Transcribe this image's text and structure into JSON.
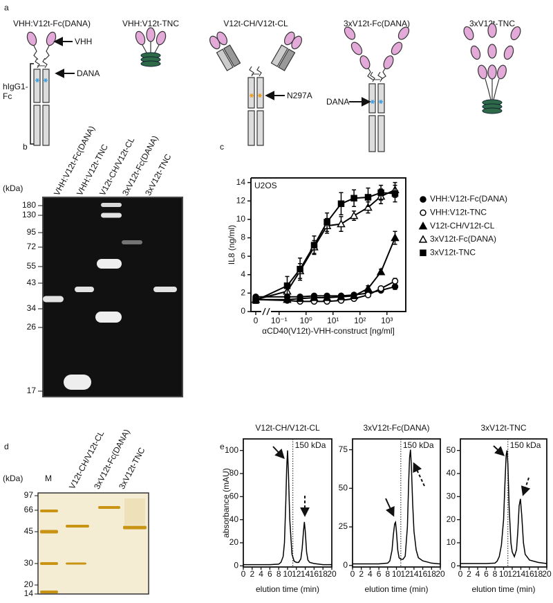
{
  "panels": {
    "a": {
      "label": "a",
      "constructs": [
        "VHH:V12t-Fc(DANA)",
        "VHH:V12t-TNC",
        "V12t-CH/V12t-CL",
        "3xV12t-Fc(DANA)",
        "3xV12t-TNC"
      ],
      "annotations": {
        "vhh": "VHH",
        "dana": "DANA",
        "fc_region": [
          "hIgG1-",
          "Fc"
        ],
        "n297a": "N297A",
        "dana_2": "DANA"
      }
    },
    "b": {
      "label": "b",
      "lanes": [
        "VHH:V12t-Fc(DANA)",
        "VHH:V12t-TNC",
        "V12t-CH/V12t-CL",
        "3xV12t-Fc(DANA)",
        "3xV12t-TNC"
      ],
      "unit": "(kDa)",
      "markers": [
        180,
        130,
        95,
        72,
        55,
        43,
        34,
        26,
        17
      ],
      "asterisks": [
        "*",
        "*",
        "*"
      ]
    },
    "c": {
      "label": "c"
    },
    "d": {
      "label": "d",
      "unit": "(kDa)",
      "marker_lane": "M",
      "lanes": [
        "V12t-CH/V12t-CL",
        "3xV12t-Fc(DANA)",
        "3xV12t-TNC"
      ],
      "markers": [
        97,
        66,
        45,
        30,
        20,
        14
      ]
    },
    "e": {
      "label": "e"
    }
  },
  "chart_data": [
    {
      "type": "line",
      "x_scale": "log",
      "annotation": "U2OS",
      "x_label": "αCD40(V12t)-VHH-construct [ng/ml]",
      "y_label": "IL8 (ng/ml)",
      "x": [
        0,
        0.2,
        0.6,
        2,
        6,
        20,
        60,
        200,
        600,
        2000
      ],
      "xlim": [
        0.05,
        5000
      ],
      "xticks": [
        0,
        {
          "value": 0.1,
          "label": "10⁻¹"
        },
        {
          "value": 1,
          "label": "10⁰"
        },
        {
          "value": 10,
          "label": "10¹"
        },
        {
          "value": 100,
          "label": "10²"
        },
        {
          "value": 1000,
          "label": "10³"
        }
      ],
      "ylim": [
        0,
        14.5
      ],
      "yticks": [
        0,
        2,
        4,
        6,
        8,
        10,
        12,
        14
      ],
      "legend": "right",
      "series": [
        {
          "name": "VHH:V12t-Fc(DANA)",
          "color": "#000000",
          "marker": "circle",
          "filled": true,
          "values": [
            1.6,
            1.6,
            1.6,
            1.7,
            1.7,
            1.7,
            1.8,
            2.0,
            2.3,
            2.7
          ],
          "errors": [
            0.2,
            0.2,
            0.2,
            0.2,
            0.2,
            0.2,
            0.2,
            0.2,
            0.2,
            0.3
          ]
        },
        {
          "name": "VHH:V12t-TNC",
          "color": "#000000",
          "marker": "circle",
          "filled": false,
          "values": [
            1.3,
            1.2,
            1.1,
            1.1,
            1.1,
            1.2,
            1.4,
            1.8,
            2.5,
            3.3
          ],
          "errors": [
            0.2,
            0.2,
            0.2,
            0.2,
            0.2,
            0.2,
            0.2,
            0.2,
            0.2,
            0.3
          ]
        },
        {
          "name": "V12t-CH/V12t-CL",
          "color": "#000000",
          "marker": "triangle",
          "filled": true,
          "values": [
            1.3,
            1.3,
            1.4,
            1.5,
            1.5,
            1.6,
            1.7,
            2.5,
            4.3,
            8.0
          ],
          "errors": [
            0.2,
            0.2,
            0.2,
            0.2,
            0.2,
            0.2,
            0.2,
            0.3,
            0.3,
            0.7
          ]
        },
        {
          "name": "3xV12t-Fc(DANA)",
          "color": "#000000",
          "marker": "triangle",
          "filled": false,
          "values": [
            1.3,
            2.2,
            4.4,
            7.0,
            9.3,
            9.5,
            10.4,
            11.3,
            12.5,
            13.2
          ],
          "errors": [
            0.3,
            0.5,
            0.8,
            0.7,
            0.8,
            0.8,
            0.5,
            0.6,
            0.8,
            0.8
          ]
        },
        {
          "name": "3xV12t-TNC",
          "color": "#000000",
          "marker": "square",
          "filled": true,
          "values": [
            1.2,
            2.8,
            4.6,
            7.2,
            9.7,
            11.7,
            12.3,
            12.4,
            12.9,
            12.8
          ],
          "errors": [
            0.3,
            1.0,
            1.2,
            1.0,
            1.0,
            1.2,
            0.9,
            1.0,
            0.8,
            0.9
          ]
        }
      ]
    },
    {
      "type": "line",
      "title": "V12t-CH/V12t-CL",
      "y_label": "absorbance (mAU)",
      "x_label": "elution time (min)",
      "x": [
        0,
        2,
        4,
        6,
        8,
        8.5,
        9,
        9.3,
        9.6,
        9.8,
        10,
        10.2,
        10.5,
        11,
        11.5,
        12,
        12.5,
        13,
        13.3,
        13.6,
        13.8,
        14,
        14.3,
        14.6,
        15,
        16,
        18,
        20
      ],
      "series": [
        {
          "color": "#000000",
          "values": [
            1,
            1,
            1,
            1,
            1.5,
            3,
            8,
            20,
            55,
            85,
            100,
            80,
            40,
            10,
            4,
            3,
            3,
            6,
            15,
            30,
            38,
            30,
            12,
            5,
            3,
            2,
            1,
            1
          ]
        }
      ],
      "xlim": [
        0,
        20
      ],
      "xticks": [
        0,
        2,
        4,
        6,
        8,
        10,
        12,
        14,
        16,
        18,
        20
      ],
      "ylim": [
        -1,
        110
      ],
      "yticks": [
        0,
        20,
        40,
        60,
        80,
        100
      ],
      "reference": {
        "x": 11.2,
        "label": "150 kDa"
      }
    },
    {
      "type": "line",
      "title": "3xV12t-Fc(DANA)",
      "x_label": "elution time (min)",
      "x": [
        0,
        2,
        4,
        6,
        8,
        8.5,
        9,
        9.3,
        9.6,
        9.8,
        10,
        10.3,
        10.6,
        11,
        11.5,
        12,
        12.5,
        12.8,
        13,
        13.2,
        13.4,
        13.7,
        14,
        14.5,
        15,
        16,
        18,
        20
      ],
      "series": [
        {
          "color": "#000000",
          "values": [
            1,
            1,
            1,
            1,
            1.5,
            3,
            10,
            20,
            27,
            28,
            22,
            10,
            5,
            4,
            4,
            6,
            25,
            55,
            70,
            75,
            65,
            40,
            22,
            10,
            5,
            3,
            1.5,
            1
          ]
        }
      ],
      "xlim": [
        0,
        20
      ],
      "xticks": [
        0,
        2,
        4,
        6,
        8,
        10,
        12,
        14,
        16,
        18,
        20
      ],
      "ylim": [
        -1,
        82
      ],
      "yticks": [
        0,
        25,
        50,
        75
      ],
      "reference": {
        "x": 11,
        "label": "150 kDa"
      }
    },
    {
      "type": "line",
      "title": "3xV12t-TNC",
      "x_label": "elution time (min)",
      "x": [
        0,
        2,
        4,
        6,
        8,
        8.5,
        9,
        9.5,
        10,
        10.3,
        10.6,
        10.8,
        11,
        11.3,
        11.7,
        12,
        12.5,
        13,
        13.3,
        13.6,
        13.9,
        14.2,
        14.6,
        15,
        16,
        18,
        20
      ],
      "series": [
        {
          "color": "#000000",
          "values": [
            1,
            1,
            1,
            1,
            1.2,
            2,
            4,
            9,
            20,
            35,
            48,
            50,
            44,
            25,
            10,
            6,
            4,
            7,
            15,
            26,
            29,
            22,
            10,
            5,
            2.5,
            1.5,
            1
          ]
        }
      ],
      "xlim": [
        0,
        20
      ],
      "xticks": [
        0,
        2,
        4,
        6,
        8,
        10,
        12,
        14,
        16,
        18,
        20
      ],
      "ylim": [
        -0.5,
        55
      ],
      "yticks": [
        0,
        10,
        20,
        30,
        40,
        50
      ],
      "reference": {
        "x": 11,
        "label": "150 kDa"
      }
    }
  ]
}
